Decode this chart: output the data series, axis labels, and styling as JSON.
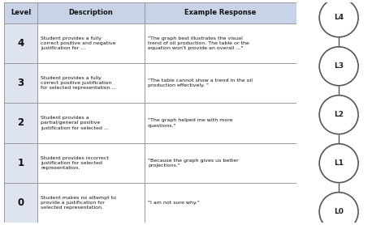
{
  "header": [
    "Level",
    "Description",
    "Example Response"
  ],
  "rows": [
    {
      "level": "4",
      "description": "Student provides a fully\ncorrect positive and negative\njustification for ...",
      "example": "\"The graph best illustrates the visual\ntrend of oil production. The table or the\nequation won't provide an overall ...\""
    },
    {
      "level": "3",
      "description": "Student provides a fully\ncorrect positive justification\nfor selected representation ...",
      "example": "\"The table cannot show a trend in the oil\nproduction effectively. \""
    },
    {
      "level": "2",
      "description": "Student provides a\npartial/general positive\njustification for selected ...",
      "example": "\"The graph helped me with more\nquestions.\""
    },
    {
      "level": "1",
      "description": "Student provides incorrect\njustification for selected\nrepresentation.",
      "example": "\"Because the graph gives us better\nprojections.\""
    },
    {
      "level": "0",
      "description": "Student makes no attempt to\nprovide a justification for\nselected representation.",
      "example": "\"I am not sure why.\""
    }
  ],
  "node_labels": [
    "L4",
    "L3",
    "L2",
    "L1",
    "L0"
  ],
  "header_bg": "#c8d3e8",
  "level_bg": "#dde4f0",
  "row_bg": "#ffffff",
  "border_color": "#999999",
  "node_fill": "#ffffff",
  "node_edge": "#555555",
  "line_color": "#555555",
  "fig_bg": "#ffffff"
}
